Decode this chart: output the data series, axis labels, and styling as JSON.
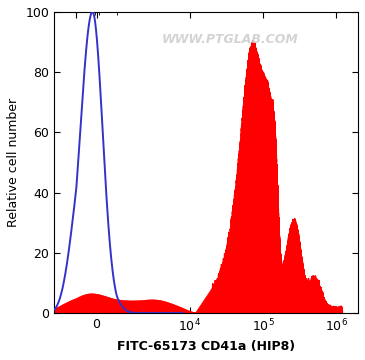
{
  "xlabel": "FITC-65173 CD41a (HIP8)",
  "ylabel": "Relative cell number",
  "watermark": "WWW.PTGLAB.COM",
  "blue_color": "#3333cc",
  "red_color": "#ff0000",
  "background_color": "#ffffff",
  "yticks": [
    0,
    20,
    40,
    60,
    80,
    100
  ],
  "ylim": [
    0,
    100
  ],
  "linthresh": 1000,
  "linscale": 0.25,
  "xlim_low": -2000,
  "xlim_high": 2000000
}
